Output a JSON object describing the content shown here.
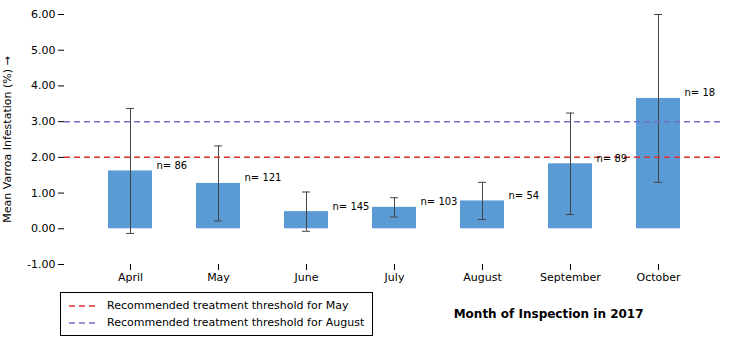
{
  "chart_data": {
    "type": "bar",
    "xlabel": "Month of Inspection in 2017",
    "ylabel": "Mean Varroa Infestation (%)",
    "categories": [
      "April",
      "May",
      "June",
      "July",
      "August",
      "September",
      "October"
    ],
    "values": [
      1.62,
      1.27,
      0.48,
      0.6,
      0.78,
      1.82,
      3.65
    ],
    "errors": [
      1.75,
      1.05,
      0.55,
      0.27,
      0.52,
      1.42,
      2.35
    ],
    "n_labels": [
      "n= 86",
      "n= 121",
      "n= 145",
      "n= 103",
      "n= 54",
      "n= 89",
      "n= 18"
    ],
    "color": "#5b9bd5",
    "thresholds": [
      {
        "name": "Recommended treatment threshold for May",
        "value": 2.0,
        "color": "#e03030",
        "line_style": "dashed"
      },
      {
        "name": "Recommended treatment threshold for August",
        "value": 3.0,
        "color": "#7070cc",
        "line_style": "dashed"
      }
    ],
    "ylim": [
      -1,
      6
    ],
    "yticks": [
      {
        "value": -1,
        "label": "-1.00"
      },
      {
        "value": 0,
        "label": "0.00"
      },
      {
        "value": 1,
        "label": "1.00"
      },
      {
        "value": 2,
        "label": "2.00"
      },
      {
        "value": 3,
        "label": "3.00"
      },
      {
        "value": 4,
        "label": "4.00"
      },
      {
        "value": 5,
        "label": "5.00"
      },
      {
        "value": 6,
        "label": "6.00"
      }
    ],
    "legend": "bottom left"
  }
}
